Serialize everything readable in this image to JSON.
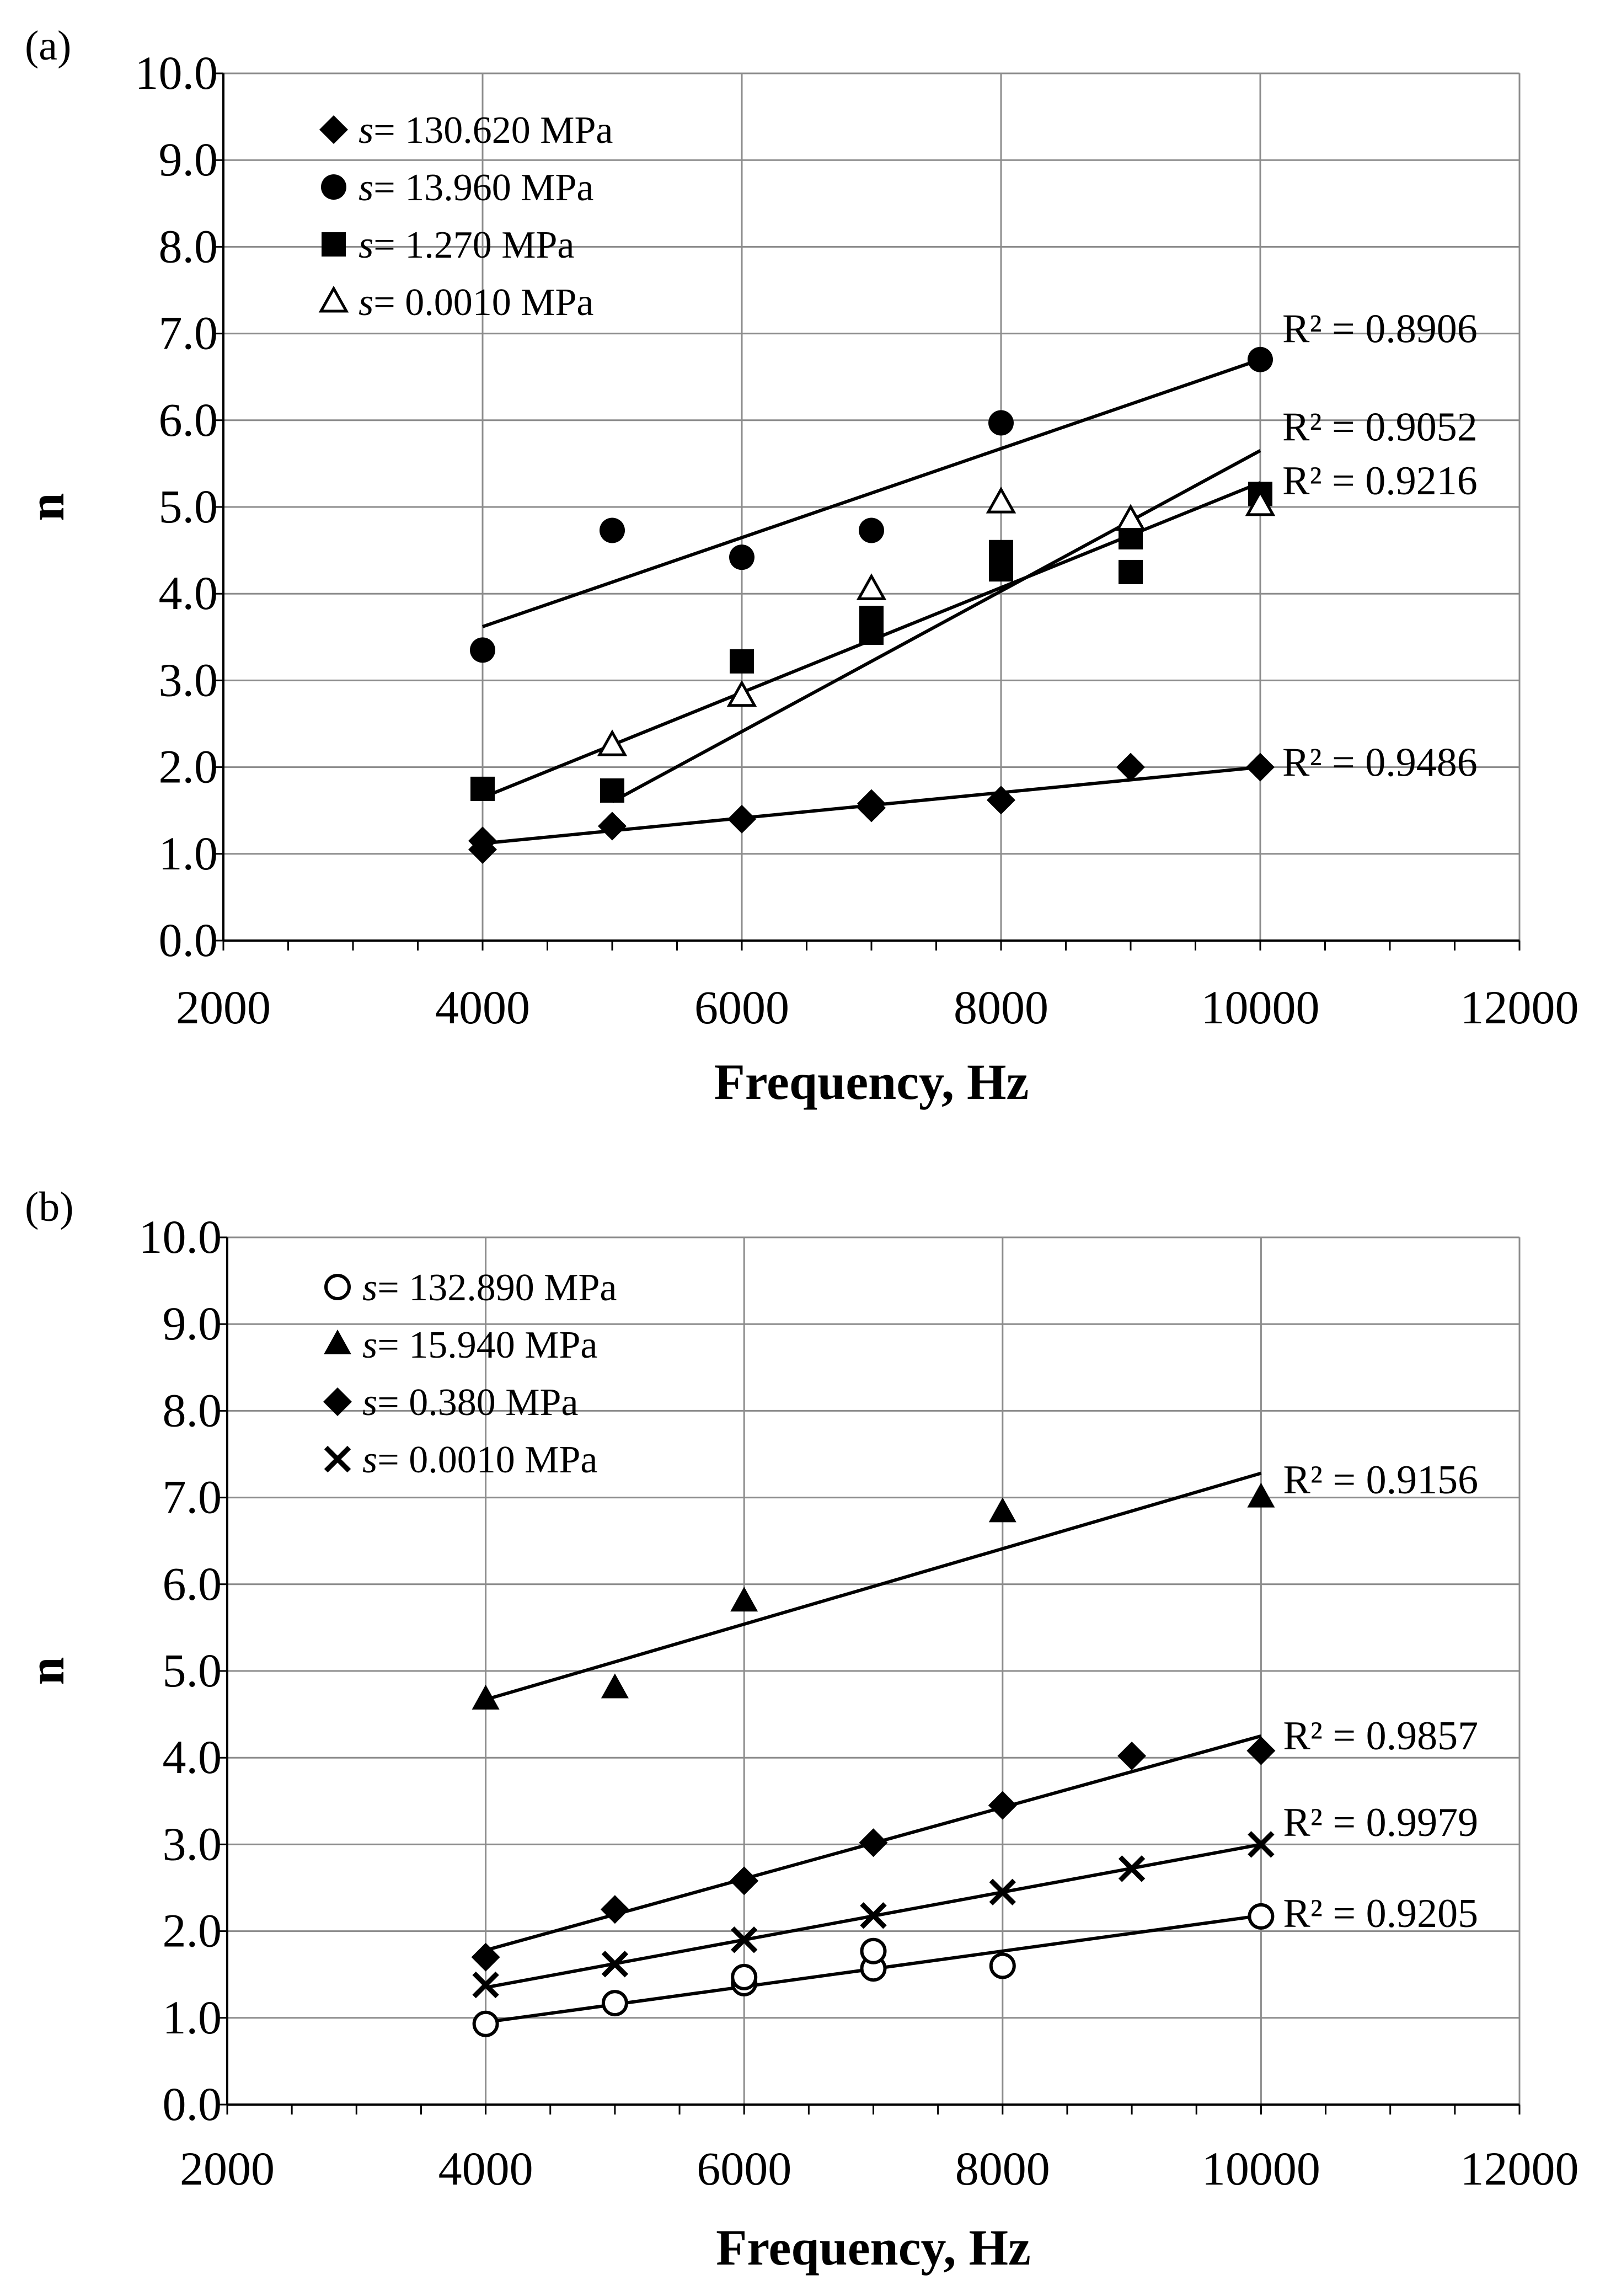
{
  "figure": {
    "panels": [
      "(a)",
      "(b)"
    ]
  },
  "chart_data": [
    {
      "type": "scatter",
      "panel_label": "(a)",
      "title": "",
      "xlabel": "Frequency, Hz",
      "ylabel": "n",
      "xlim": [
        2000,
        12000
      ],
      "ylim": [
        0.0,
        10.0
      ],
      "xticks": [
        2000,
        4000,
        6000,
        8000,
        10000,
        12000
      ],
      "yticks": [
        0.0,
        1.0,
        2.0,
        3.0,
        4.0,
        5.0,
        6.0,
        7.0,
        8.0,
        9.0,
        10.0
      ],
      "grid": "vertical and horizontal",
      "legend_position": "top-left",
      "series": [
        {
          "name": "s= 130.620 MPa",
          "legend_prefix": "s",
          "legend_suffix": "= 130.620 MPa",
          "marker": "diamond",
          "x": [
            4000,
            4000,
            5000,
            6000,
            7000,
            7000,
            8000,
            9000,
            10000
          ],
          "y": [
            1.05,
            1.15,
            1.32,
            1.4,
            1.53,
            1.58,
            1.62,
            2.0,
            2.0
          ],
          "trend": {
            "y_start": 1.12,
            "y_end": 2.0,
            "r2_label": "R² = 0.9486",
            "r2_anchor_y": 2.05
          }
        },
        {
          "name": "s= 13.960 MPa",
          "legend_prefix": "s",
          "legend_suffix": "= 13.960 MPa",
          "marker": "circle",
          "x": [
            4000,
            5000,
            6000,
            7000,
            8000,
            10000
          ],
          "y": [
            3.35,
            4.73,
            4.42,
            4.73,
            5.97,
            6.7
          ],
          "trend": {
            "y_start": 3.62,
            "y_end": 6.7,
            "r2_label": "R² = 0.8906",
            "r2_anchor_y": 7.05
          }
        },
        {
          "name": "s= 1.270  MPa",
          "legend_prefix": "s",
          "legend_suffix": "= 1.270  MPa",
          "marker": "square",
          "x": [
            4000,
            5000,
            6000,
            7000,
            7000,
            8000,
            8000,
            9000,
            9000,
            10000
          ],
          "y": [
            1.75,
            1.73,
            3.22,
            3.55,
            3.72,
            4.28,
            4.48,
            4.25,
            4.65,
            5.15
          ],
          "trend": {
            "y_start": 1.65,
            "y_end": 5.28,
            "r2_label": "R² = 0.9216",
            "r2_anchor_y": 5.3
          }
        },
        {
          "name": "s= 0.0010 MPa",
          "legend_prefix": "s",
          "legend_suffix": "= 0.0010 MPa",
          "marker": "triangle-open",
          "x": [
            5000,
            6000,
            7000,
            8000,
            9000,
            10000
          ],
          "y": [
            2.25,
            2.82,
            4.05,
            5.05,
            4.85,
            5.02
          ],
          "trend": {
            "y_start": 1.6,
            "y_end": 5.65,
            "r2_label": "R² = 0.9052",
            "r2_anchor_y": 5.92
          }
        }
      ]
    },
    {
      "type": "scatter",
      "panel_label": "(b)",
      "title": "",
      "xlabel": "Frequency, Hz",
      "ylabel": "n",
      "xlim": [
        2000,
        12000
      ],
      "ylim": [
        0.0,
        10.0
      ],
      "xticks": [
        2000,
        4000,
        6000,
        8000,
        10000,
        12000
      ],
      "yticks": [
        0.0,
        1.0,
        2.0,
        3.0,
        4.0,
        5.0,
        6.0,
        7.0,
        8.0,
        9.0,
        10.0
      ],
      "grid": "vertical and horizontal",
      "legend_position": "top-left",
      "series": [
        {
          "name": "s= 132.890 MPa",
          "legend_prefix": "s",
          "legend_suffix": "= 132.890 MPa",
          "marker": "circle-open",
          "x": [
            4000,
            5000,
            6000,
            6000,
            7000,
            7000,
            8000,
            10000
          ],
          "y": [
            0.93,
            1.17,
            1.4,
            1.47,
            1.57,
            1.77,
            1.6,
            2.17
          ],
          "trend": {
            "y_start": 0.95,
            "y_end": 2.18,
            "r2_label": "R² = 0.9205",
            "r2_anchor_y": 2.2
          }
        },
        {
          "name": "s= 15.940 MPa",
          "legend_prefix": "s",
          "legend_suffix": "= 15.940 MPa",
          "marker": "triangle",
          "x": [
            4000,
            5000,
            6000,
            8000,
            10000
          ],
          "y": [
            4.67,
            4.8,
            5.8,
            6.83,
            7.0
          ],
          "trend": {
            "y_start": 4.67,
            "y_end": 7.28,
            "r2_label": "R² = 0.9156",
            "r2_anchor_y": 7.2
          }
        },
        {
          "name": "s= 0.380  MPa",
          "legend_prefix": "s",
          "legend_suffix": "= 0.380  MPa",
          "marker": "diamond",
          "x": [
            4000,
            5000,
            6000,
            7000,
            8000,
            9000,
            10000
          ],
          "y": [
            1.7,
            2.25,
            2.58,
            3.02,
            3.45,
            4.02,
            4.08
          ],
          "trend": {
            "y_start": 1.78,
            "y_end": 4.25,
            "r2_label": "R² = 0.9857",
            "r2_anchor_y": 4.25
          }
        },
        {
          "name": "s= 0.0010 MPa",
          "legend_prefix": "s",
          "legend_suffix": "= 0.0010 MPa",
          "marker": "x",
          "x": [
            4000,
            5000,
            6000,
            7000,
            8000,
            9000,
            10000
          ],
          "y": [
            1.38,
            1.62,
            1.9,
            2.18,
            2.45,
            2.72,
            3.0
          ],
          "trend": {
            "y_start": 1.35,
            "y_end": 3.0,
            "r2_label": "R² = 0.9979",
            "r2_anchor_y": 3.25
          }
        }
      ]
    }
  ]
}
